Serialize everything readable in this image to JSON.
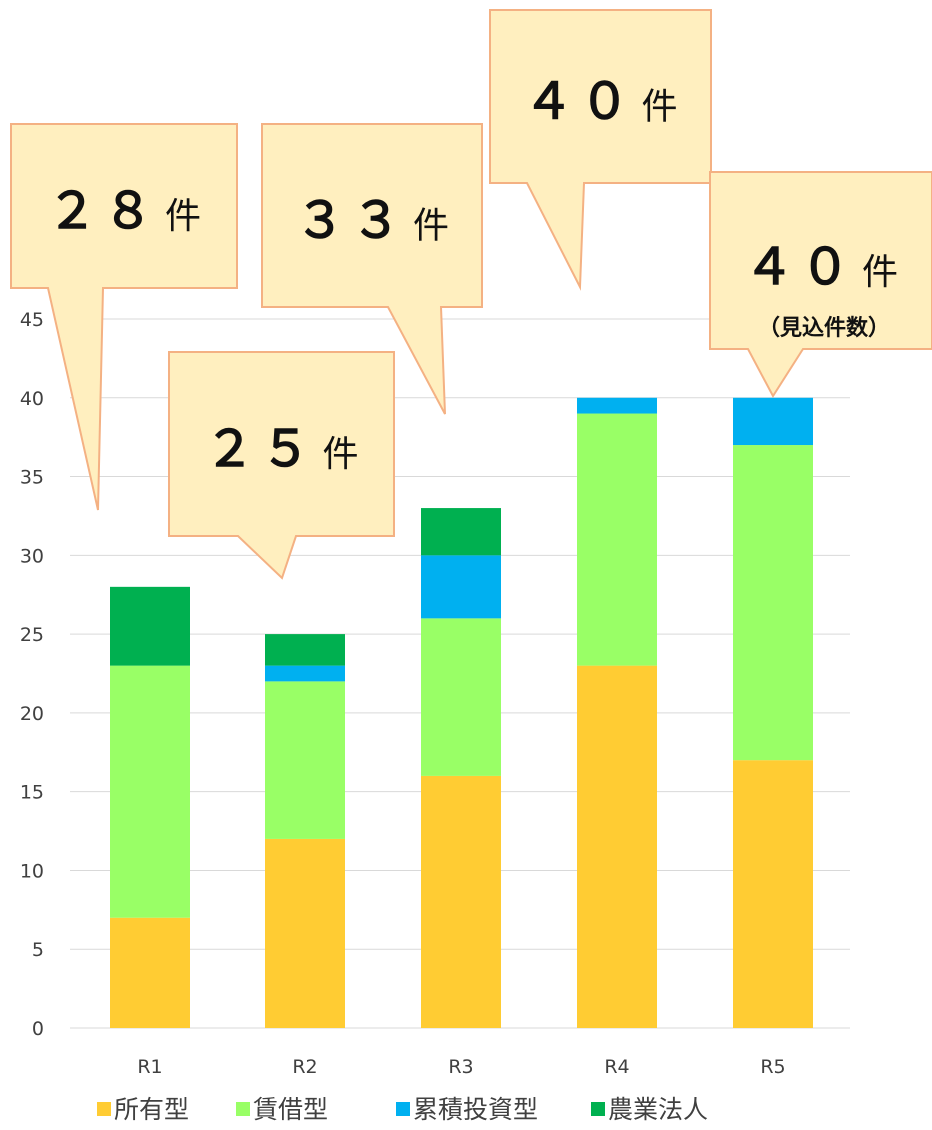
{
  "chart_data": {
    "type": "bar",
    "stacked": true,
    "categories": [
      "R1",
      "R2",
      "R3",
      "R4",
      "R5"
    ],
    "series": [
      {
        "name": "所有型",
        "color": "#ffcc33",
        "values": [
          7,
          12,
          16,
          23,
          17
        ]
      },
      {
        "name": "賃借型",
        "color": "#99ff66",
        "values": [
          16,
          10,
          10,
          16,
          20
        ]
      },
      {
        "name": "累積投資型",
        "color": "#00b0f0",
        "values": [
          0,
          1,
          4,
          1,
          3
        ]
      },
      {
        "name": "農業法人",
        "color": "#00b050",
        "values": [
          5,
          2,
          3,
          0,
          0
        ]
      }
    ],
    "ylim": [
      0,
      45
    ],
    "yticks": [
      0,
      5,
      10,
      15,
      20,
      25,
      30,
      35,
      40,
      45
    ],
    "grid": true,
    "legend_position": "bottom",
    "annotations": [
      {
        "category": "R1",
        "number": "２８",
        "unit": "件",
        "note": ""
      },
      {
        "category": "R2",
        "number": "２５",
        "unit": "件",
        "note": ""
      },
      {
        "category": "R3",
        "number": "３３",
        "unit": "件",
        "note": ""
      },
      {
        "category": "R4",
        "number": "４０",
        "unit": "件",
        "note": ""
      },
      {
        "category": "R5",
        "number": "４０",
        "unit": "件",
        "note": "（見込件数）"
      }
    ]
  }
}
